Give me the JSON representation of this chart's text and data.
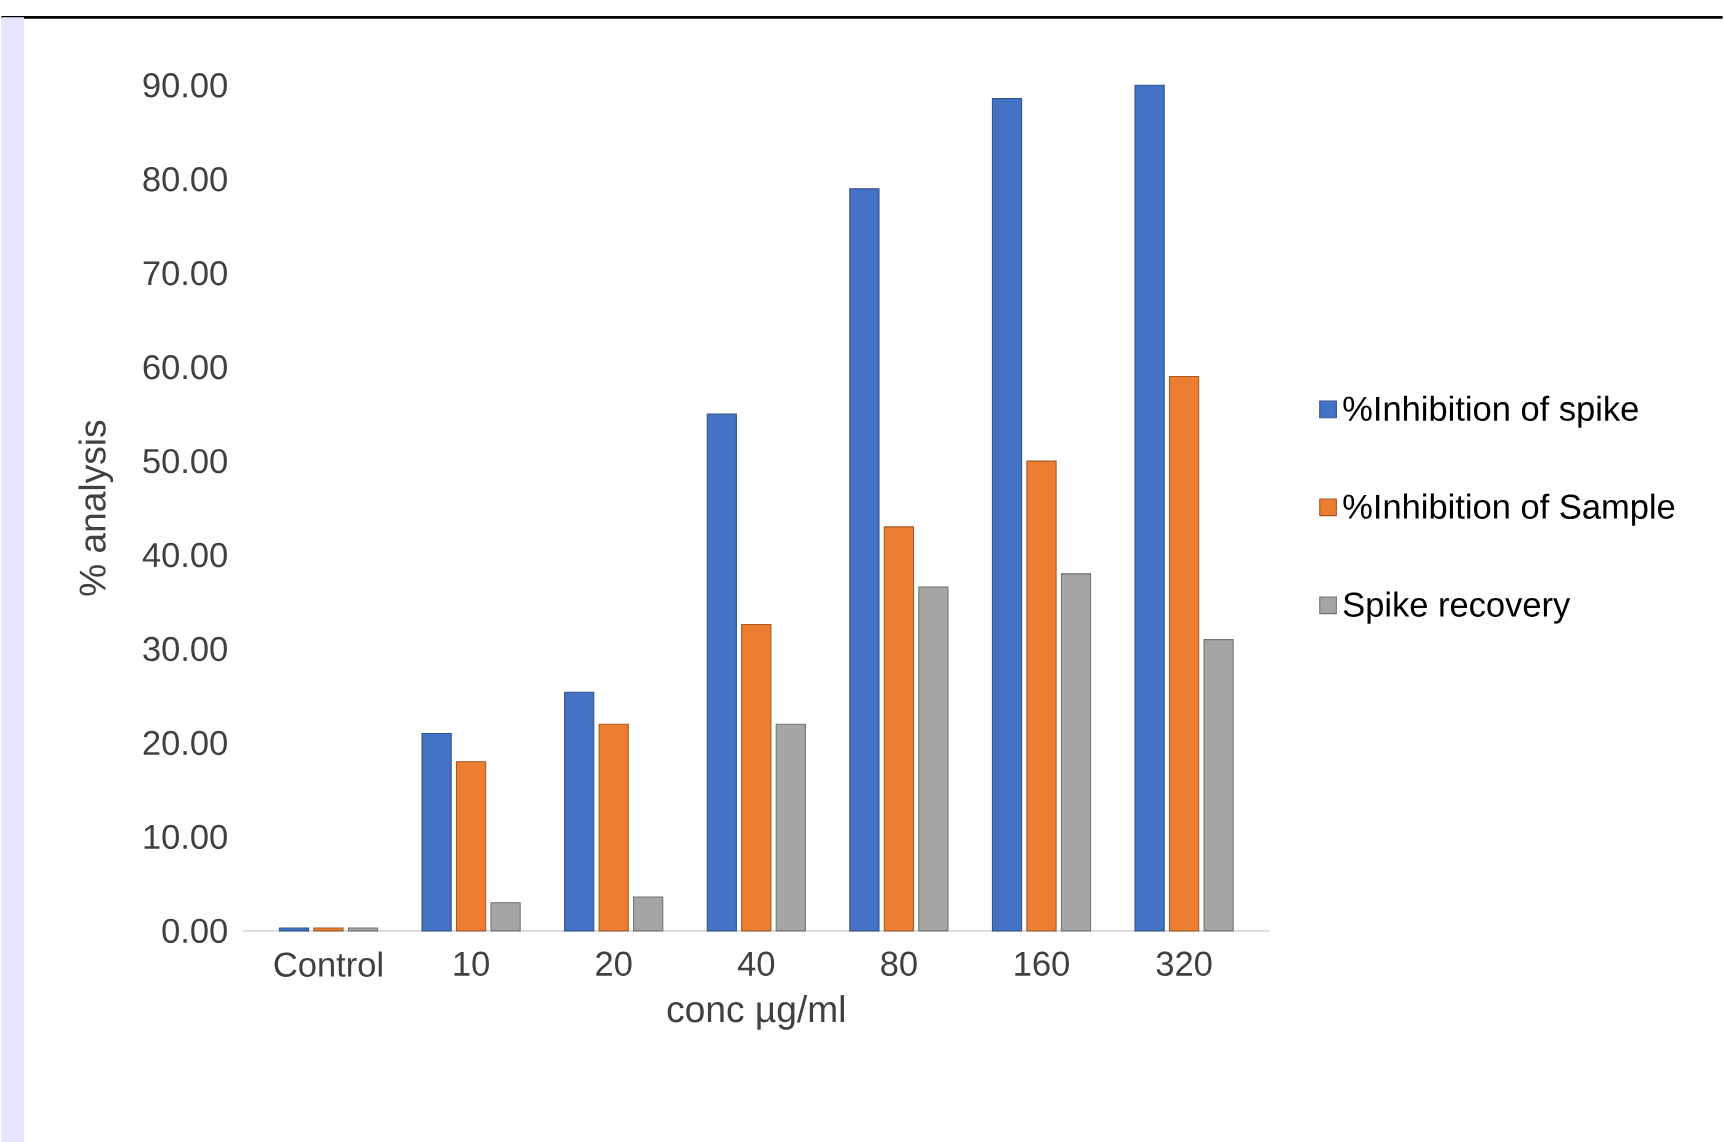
{
  "chart_data": {
    "type": "bar",
    "xlabel": "conc µg/ml",
    "ylabel": "% analysis",
    "categories": [
      "Control",
      "10",
      "20",
      "40",
      "80",
      "160",
      "320"
    ],
    "series": [
      {
        "name": "%Inhibition of spike",
        "color": "#4472c4",
        "values": [
          0.3,
          21,
          25.4,
          55,
          79,
          88.6,
          90
        ]
      },
      {
        "name": "%Inhibition of Sample",
        "color": "#ed7d31",
        "values": [
          0.3,
          18,
          22,
          32.6,
          43,
          50,
          59
        ]
      },
      {
        "name": "Spike recovery",
        "color": "#a5a5a5",
        "values": [
          0.3,
          3,
          3.6,
          22,
          36.6,
          38,
          31
        ]
      }
    ],
    "ylim": [
      0,
      90
    ],
    "yticks": [
      {
        "value": 0,
        "label": "0.00"
      },
      {
        "value": 10,
        "label": "10.00"
      },
      {
        "value": 20,
        "label": "20.00"
      },
      {
        "value": 30,
        "label": "30.00"
      },
      {
        "value": 40,
        "label": "40.00"
      },
      {
        "value": 50,
        "label": "50.00"
      },
      {
        "value": 60,
        "label": "60.00"
      },
      {
        "value": 70,
        "label": "70.00"
      },
      {
        "value": 80,
        "label": "80.00"
      },
      {
        "value": 90,
        "label": "90.00"
      }
    ],
    "grid": false,
    "legend": "right"
  }
}
